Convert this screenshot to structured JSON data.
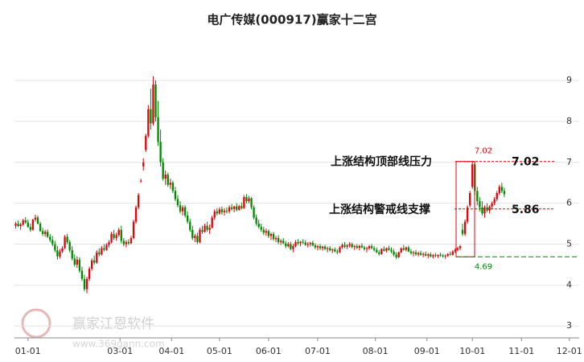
{
  "chart_data": {
    "type": "candlestick",
    "title": "电广传媒(000917)赢家十二宫",
    "xlim": [
      0,
      230
    ],
    "ylim": [
      2.71,
      10.18
    ],
    "yticks": [
      3,
      4,
      5,
      6,
      7,
      8,
      9
    ],
    "xticks": [
      {
        "value": 5.5,
        "label": "01-01"
      },
      {
        "value": 43,
        "label": "03-01"
      },
      {
        "value": 64,
        "label": "04-01"
      },
      {
        "value": 83.5,
        "label": "05-01"
      },
      {
        "value": 103.5,
        "label": "06-01"
      },
      {
        "value": 123.5,
        "label": "07-01"
      },
      {
        "value": 147,
        "label": "08-01"
      },
      {
        "value": 168,
        "label": "09-01"
      },
      {
        "value": 186.5,
        "label": "10-01"
      },
      {
        "value": 206.5,
        "label": "11-01"
      },
      {
        "value": 226,
        "label": "12-01"
      }
    ],
    "grid": true,
    "up_color": "#e8000b",
    "down_color": "#008a00",
    "ohlc": [
      [
        5.45,
        5.55,
        5.38,
        5.5
      ],
      [
        5.5,
        5.58,
        5.42,
        5.44
      ],
      [
        5.44,
        5.52,
        5.35,
        5.48
      ],
      [
        5.48,
        5.62,
        5.45,
        5.58
      ],
      [
        5.58,
        5.66,
        5.5,
        5.53
      ],
      [
        5.53,
        5.6,
        5.4,
        5.42
      ],
      [
        5.42,
        5.5,
        5.3,
        5.35
      ],
      [
        5.35,
        5.62,
        5.33,
        5.6
      ],
      [
        5.6,
        5.72,
        5.55,
        5.65
      ],
      [
        5.65,
        5.7,
        5.48,
        5.5
      ],
      [
        5.5,
        5.55,
        5.3,
        5.32
      ],
      [
        5.32,
        5.4,
        5.2,
        5.25
      ],
      [
        5.25,
        5.35,
        5.18,
        5.3
      ],
      [
        5.3,
        5.36,
        5.15,
        5.18
      ],
      [
        5.18,
        5.25,
        5.05,
        5.1
      ],
      [
        5.1,
        5.2,
        4.95,
        5.0
      ],
      [
        5.0,
        5.08,
        4.8,
        4.85
      ],
      [
        4.85,
        4.95,
        4.62,
        4.7
      ],
      [
        4.7,
        4.88,
        4.65,
        4.82
      ],
      [
        4.82,
        4.95,
        4.78,
        4.9
      ],
      [
        4.9,
        5.22,
        4.88,
        5.18
      ],
      [
        5.18,
        5.25,
        5.0,
        5.05
      ],
      [
        5.05,
        5.1,
        4.8,
        4.85
      ],
      [
        4.85,
        4.95,
        4.6,
        4.65
      ],
      [
        4.65,
        4.75,
        4.45,
        4.5
      ],
      [
        4.5,
        4.7,
        4.42,
        4.62
      ],
      [
        4.62,
        4.68,
        4.3,
        4.35
      ],
      [
        4.35,
        4.45,
        4.1,
        4.15
      ],
      [
        4.15,
        4.25,
        3.85,
        3.9
      ],
      [
        3.9,
        4.2,
        3.8,
        4.15
      ],
      [
        4.15,
        4.45,
        4.1,
        4.4
      ],
      [
        4.4,
        4.65,
        4.35,
        4.6
      ],
      [
        4.6,
        4.72,
        4.5,
        4.55
      ],
      [
        4.55,
        4.85,
        4.52,
        4.8
      ],
      [
        4.8,
        4.9,
        4.7,
        4.75
      ],
      [
        4.75,
        4.95,
        4.72,
        4.9
      ],
      [
        4.9,
        5.0,
        4.82,
        4.86
      ],
      [
        4.86,
        5.02,
        4.84,
        4.98
      ],
      [
        4.98,
        5.1,
        4.92,
        5.05
      ],
      [
        5.05,
        5.3,
        5.02,
        5.25
      ],
      [
        5.25,
        5.35,
        5.1,
        5.15
      ],
      [
        5.15,
        5.28,
        5.08,
        5.22
      ],
      [
        5.22,
        5.4,
        5.18,
        5.35
      ],
      [
        5.35,
        5.45,
        5.02,
        5.08
      ],
      [
        5.08,
        5.15,
        4.95,
        5.0
      ],
      [
        5.0,
        5.1,
        4.92,
        5.05
      ],
      [
        5.05,
        5.12,
        4.98,
        5.02
      ],
      [
        5.02,
        5.2,
        5.0,
        5.15
      ],
      [
        5.15,
        5.6,
        5.12,
        5.55
      ],
      [
        5.55,
        5.95,
        5.5,
        5.9
      ],
      [
        5.9,
        6.25,
        5.85,
        6.2
      ],
      [
        6.55,
        6.6,
        6.5,
        6.55
      ],
      [
        6.9,
        7.1,
        6.8,
        7.0
      ],
      [
        7.3,
        7.7,
        7.25,
        7.65
      ],
      [
        7.65,
        8.4,
        7.6,
        8.3
      ],
      [
        8.3,
        8.8,
        7.8,
        7.95
      ],
      [
        7.95,
        9.1,
        7.9,
        8.9
      ],
      [
        8.9,
        9.0,
        8.0,
        8.1
      ],
      [
        8.1,
        8.5,
        7.4,
        7.5
      ],
      [
        7.5,
        7.8,
        6.9,
        7.0
      ],
      [
        7.0,
        7.1,
        6.55,
        6.6
      ],
      [
        6.6,
        6.8,
        6.45,
        6.7
      ],
      [
        6.7,
        6.75,
        6.4,
        6.45
      ],
      [
        6.45,
        6.6,
        6.35,
        6.5
      ],
      [
        6.5,
        6.55,
        6.25,
        6.3
      ],
      [
        6.3,
        6.4,
        6.05,
        6.1
      ],
      [
        6.1,
        6.2,
        5.9,
        5.95
      ],
      [
        5.95,
        6.05,
        5.75,
        5.8
      ],
      [
        5.8,
        5.95,
        5.7,
        5.9
      ],
      [
        5.9,
        5.95,
        5.65,
        5.7
      ],
      [
        5.7,
        5.8,
        5.5,
        5.55
      ],
      [
        5.55,
        5.62,
        5.3,
        5.35
      ],
      [
        5.35,
        5.45,
        5.1,
        5.15
      ],
      [
        5.15,
        5.25,
        5.05,
        5.2
      ],
      [
        5.2,
        5.28,
        5.0,
        5.05
      ],
      [
        5.05,
        5.4,
        5.02,
        5.35
      ],
      [
        5.35,
        5.45,
        5.25,
        5.3
      ],
      [
        5.3,
        5.5,
        5.28,
        5.45
      ],
      [
        5.45,
        5.55,
        5.3,
        5.35
      ],
      [
        5.35,
        5.48,
        5.25,
        5.4
      ],
      [
        5.4,
        5.7,
        5.38,
        5.65
      ],
      [
        5.65,
        5.85,
        5.6,
        5.8
      ],
      [
        5.8,
        5.88,
        5.7,
        5.75
      ],
      [
        5.75,
        5.9,
        5.72,
        5.85
      ],
      [
        5.85,
        5.92,
        5.72,
        5.78
      ],
      [
        5.78,
        5.88,
        5.7,
        5.82
      ],
      [
        5.82,
        5.9,
        5.75,
        5.8
      ],
      [
        5.8,
        5.95,
        5.75,
        5.9
      ],
      [
        5.9,
        5.98,
        5.82,
        5.86
      ],
      [
        5.86,
        5.94,
        5.78,
        5.92
      ],
      [
        5.92,
        6.0,
        5.8,
        5.84
      ],
      [
        5.84,
        5.96,
        5.82,
        5.93
      ],
      [
        5.93,
        6.02,
        5.85,
        5.88
      ],
      [
        5.88,
        6.2,
        5.86,
        6.15
      ],
      [
        6.15,
        6.22,
        6.0,
        6.05
      ],
      [
        6.05,
        6.18,
        6.0,
        6.12
      ],
      [
        6.12,
        6.15,
        5.85,
        5.9
      ],
      [
        5.9,
        5.95,
        5.6,
        5.65
      ],
      [
        5.65,
        5.72,
        5.45,
        5.5
      ],
      [
        5.5,
        5.6,
        5.38,
        5.42
      ],
      [
        5.42,
        5.5,
        5.3,
        5.35
      ],
      [
        5.35,
        5.42,
        5.22,
        5.28
      ],
      [
        5.28,
        5.38,
        5.2,
        5.32
      ],
      [
        5.32,
        5.36,
        5.15,
        5.2
      ],
      [
        5.2,
        5.28,
        5.1,
        5.25
      ],
      [
        5.25,
        5.3,
        5.08,
        5.12
      ],
      [
        5.12,
        5.2,
        5.05,
        5.15
      ],
      [
        5.15,
        5.22,
        5.0,
        5.05
      ],
      [
        5.05,
        5.12,
        4.98,
        5.08
      ],
      [
        5.08,
        5.15,
        5.0,
        5.02
      ],
      [
        5.02,
        5.08,
        4.9,
        4.95
      ],
      [
        4.95,
        5.05,
        4.92,
        5.0
      ],
      [
        5.0,
        5.06,
        4.85,
        4.88
      ],
      [
        4.88,
        5.0,
        4.8,
        4.95
      ],
      [
        4.95,
        5.1,
        4.92,
        5.05
      ],
      [
        5.05,
        5.12,
        4.98,
        5.02
      ],
      [
        5.02,
        5.08,
        4.95,
        5.06
      ],
      [
        5.06,
        5.12,
        5.0,
        5.04
      ],
      [
        5.04,
        5.1,
        4.96,
        4.98
      ],
      [
        4.98,
        5.05,
        4.92,
        5.0
      ],
      [
        5.0,
        5.06,
        4.94,
        5.03
      ],
      [
        5.03,
        5.08,
        4.95,
        4.97
      ],
      [
        4.97,
        5.02,
        4.88,
        4.92
      ],
      [
        4.92,
        4.98,
        4.85,
        4.95
      ],
      [
        4.95,
        5.0,
        4.86,
        4.9
      ],
      [
        4.9,
        4.96,
        4.84,
        4.94
      ],
      [
        4.94,
        4.98,
        4.86,
        4.88
      ],
      [
        4.88,
        4.94,
        4.8,
        4.9
      ],
      [
        4.9,
        4.95,
        4.82,
        4.85
      ],
      [
        4.85,
        4.9,
        4.78,
        4.87
      ],
      [
        4.87,
        4.92,
        4.8,
        4.82
      ],
      [
        4.82,
        4.88,
        4.75,
        4.8
      ],
      [
        4.8,
        4.95,
        4.78,
        4.92
      ],
      [
        4.92,
        5.02,
        4.88,
        4.98
      ],
      [
        4.98,
        5.05,
        4.9,
        4.94
      ],
      [
        4.94,
        5.0,
        4.88,
        4.97
      ],
      [
        4.97,
        5.05,
        4.92,
        5.0
      ],
      [
        5.0,
        5.04,
        4.9,
        4.93
      ],
      [
        4.93,
        4.98,
        4.86,
        4.95
      ],
      [
        4.95,
        5.0,
        4.88,
        4.91
      ],
      [
        4.91,
        4.98,
        4.85,
        4.96
      ],
      [
        4.96,
        5.02,
        4.9,
        4.92
      ],
      [
        4.92,
        4.96,
        4.84,
        4.88
      ],
      [
        4.88,
        4.94,
        4.8,
        4.9
      ],
      [
        4.9,
        4.98,
        4.86,
        4.95
      ],
      [
        4.95,
        5.0,
        4.88,
        4.9
      ],
      [
        4.9,
        4.95,
        4.82,
        4.86
      ],
      [
        4.86,
        4.92,
        4.78,
        4.8
      ],
      [
        4.8,
        4.86,
        4.72,
        4.76
      ],
      [
        4.76,
        4.9,
        4.74,
        4.88
      ],
      [
        4.88,
        4.95,
        4.82,
        4.84
      ],
      [
        4.84,
        4.92,
        4.8,
        4.9
      ],
      [
        4.9,
        4.96,
        4.84,
        4.86
      ],
      [
        4.86,
        4.92,
        4.78,
        4.82
      ],
      [
        4.82,
        4.88,
        4.7,
        4.74
      ],
      [
        4.74,
        4.8,
        4.64,
        4.68
      ],
      [
        4.68,
        4.82,
        4.66,
        4.8
      ],
      [
        4.8,
        4.92,
        4.78,
        4.9
      ],
      [
        4.9,
        4.98,
        4.84,
        4.86
      ],
      [
        4.86,
        4.94,
        4.82,
        4.92
      ],
      [
        4.92,
        4.96,
        4.8,
        4.82
      ],
      [
        4.82,
        4.88,
        4.74,
        4.78
      ],
      [
        4.78,
        4.84,
        4.7,
        4.8
      ],
      [
        4.8,
        4.86,
        4.72,
        4.75
      ],
      [
        4.75,
        4.82,
        4.7,
        4.78
      ],
      [
        4.78,
        4.84,
        4.72,
        4.74
      ],
      [
        4.74,
        4.8,
        4.68,
        4.76
      ],
      [
        4.76,
        4.82,
        4.7,
        4.72
      ],
      [
        4.72,
        4.78,
        4.66,
        4.75
      ],
      [
        4.75,
        4.8,
        4.68,
        4.7
      ],
      [
        4.7,
        4.76,
        4.65,
        4.73
      ],
      [
        4.73,
        4.78,
        4.68,
        4.71
      ],
      [
        4.71,
        4.75,
        4.66,
        4.74
      ],
      [
        4.74,
        4.79,
        4.69,
        4.72
      ],
      [
        4.72,
        4.76,
        4.67,
        4.7
      ],
      [
        4.7,
        4.75,
        4.64,
        4.72
      ],
      [
        4.72,
        4.78,
        4.69,
        4.76
      ],
      [
        4.76,
        4.82,
        4.72,
        4.74
      ],
      [
        4.74,
        4.85,
        4.72,
        4.82
      ],
      [
        4.82,
        4.9,
        4.78,
        4.86
      ],
      [
        4.86,
        4.94,
        4.82,
        4.9
      ],
      [
        4.9,
        4.98,
        4.85,
        4.95
      ],
      [
        5.35,
        5.5,
        5.2,
        5.25
      ],
      [
        5.25,
        5.6,
        5.2,
        5.55
      ],
      [
        5.55,
        5.95,
        5.5,
        5.9
      ],
      [
        5.95,
        6.3,
        5.9,
        6.25
      ],
      [
        6.4,
        7.02,
        6.35,
        6.95
      ],
      [
        6.95,
        7.0,
        6.2,
        6.3
      ],
      [
        6.3,
        6.4,
        5.95,
        6.05
      ],
      [
        6.05,
        6.15,
        5.8,
        5.9
      ],
      [
        5.9,
        6.05,
        5.7,
        5.75
      ],
      [
        5.75,
        5.95,
        5.65,
        5.9
      ],
      [
        5.9,
        6.0,
        5.78,
        5.82
      ],
      [
        5.82,
        5.95,
        5.75,
        5.92
      ],
      [
        5.92,
        6.05,
        5.85,
        6.0
      ],
      [
        6.0,
        6.15,
        5.95,
        6.1
      ],
      [
        6.1,
        6.3,
        6.05,
        6.25
      ],
      [
        6.25,
        6.45,
        6.2,
        6.4
      ],
      [
        6.4,
        6.5,
        6.25,
        6.3
      ],
      [
        6.3,
        6.38,
        6.15,
        6.22
      ]
    ],
    "levels": [
      {
        "name": "上涨结构顶部线压力",
        "value": 7.02,
        "color": "#e8000b"
      },
      {
        "name": "上涨结构警戒线支撑",
        "value": 5.86,
        "color": "#e8000b"
      },
      {
        "value": 4.69,
        "color": "#008a00"
      }
    ],
    "watermark": {
      "text": "赢家江恩软件",
      "url": "www.369gann.com"
    }
  }
}
